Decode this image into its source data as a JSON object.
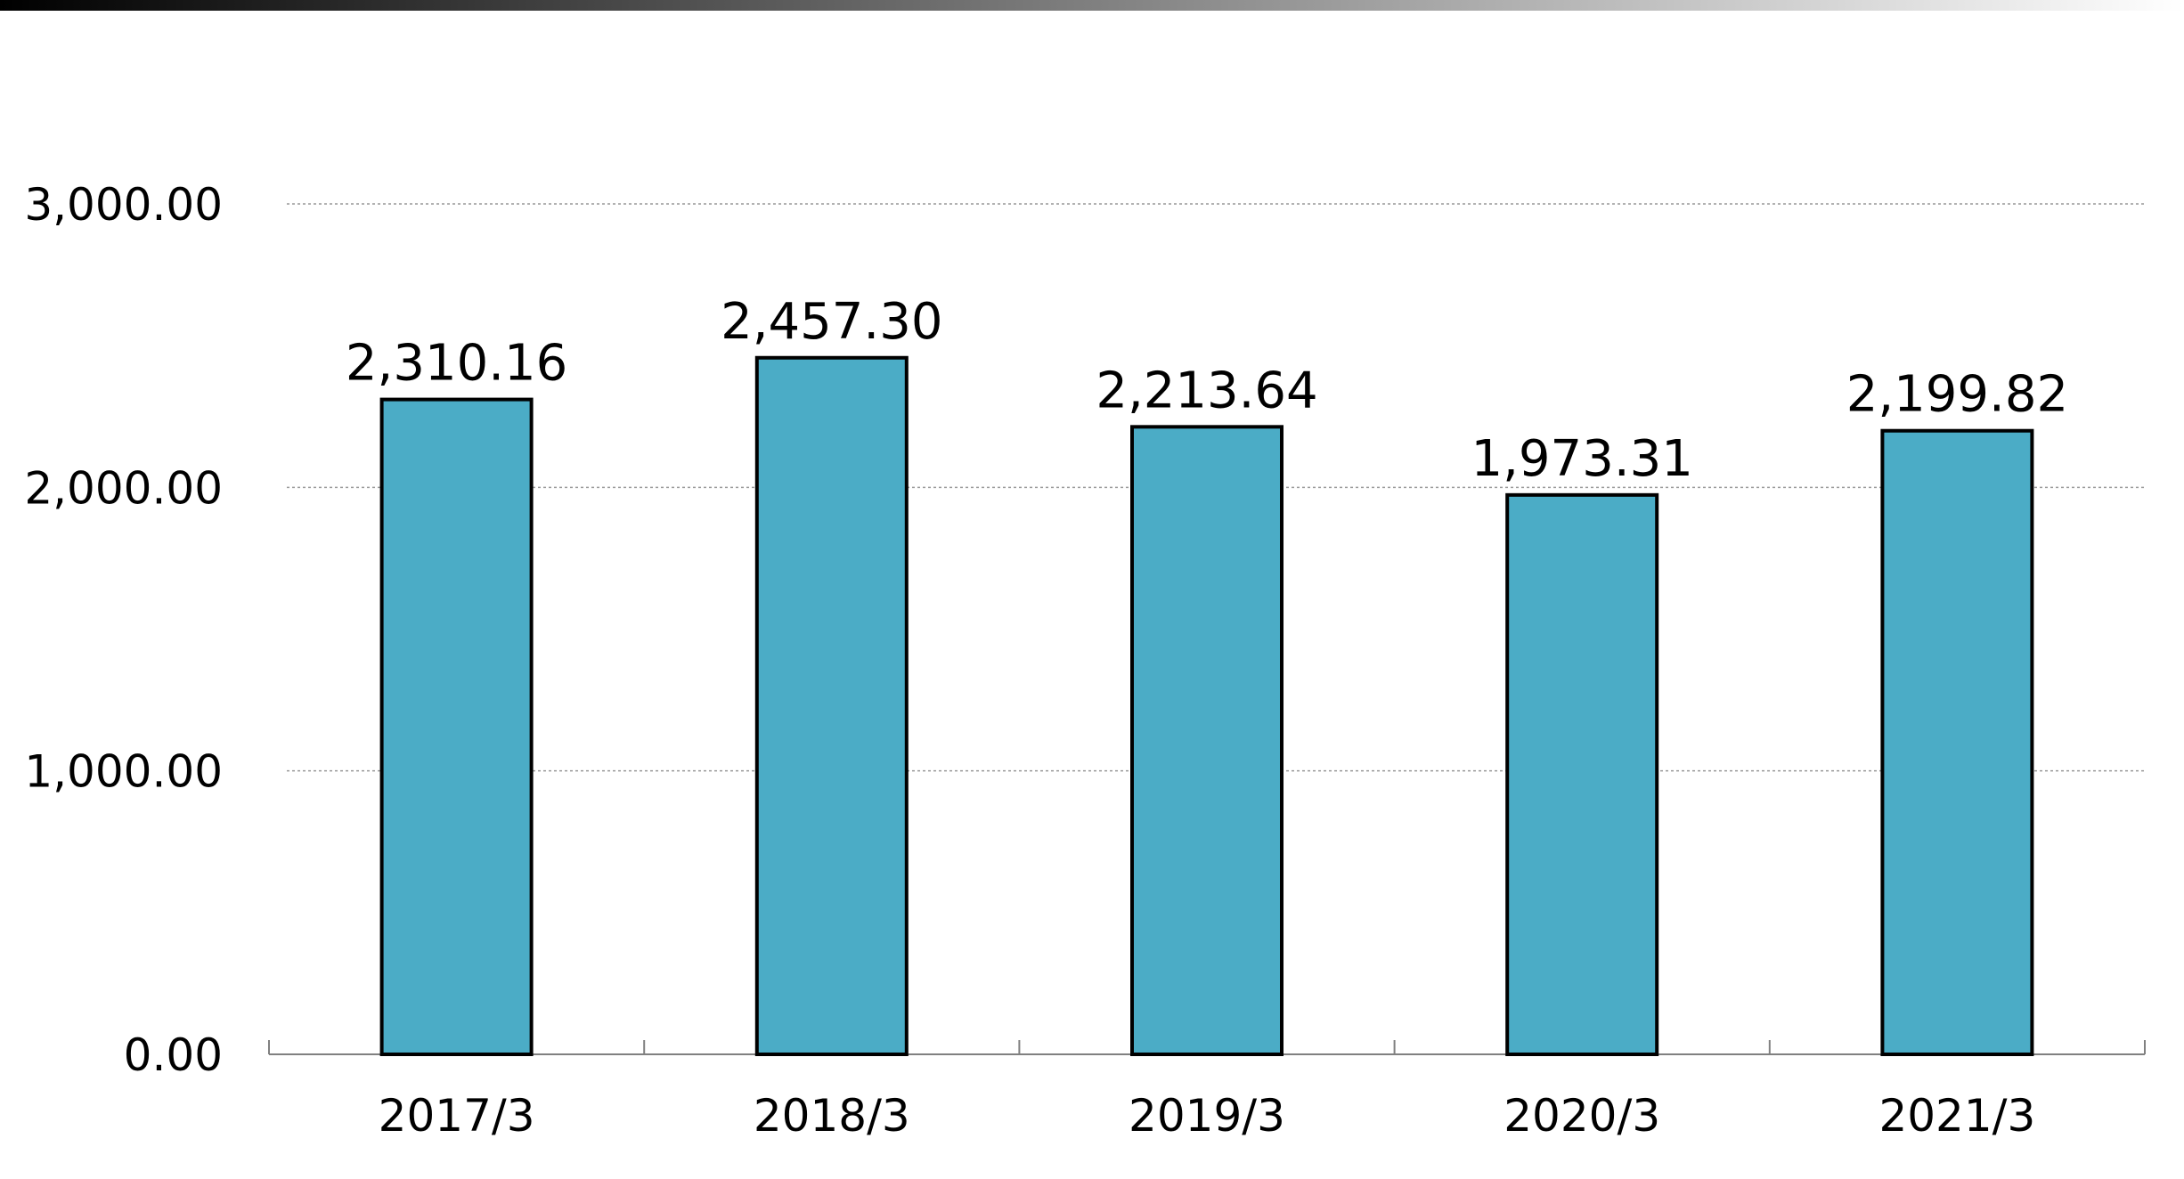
{
  "chart_data": {
    "type": "bar",
    "title": "",
    "xlabel": "",
    "ylabel": "",
    "categories": [
      "2017/3",
      "2018/3",
      "2019/3",
      "2020/3",
      "2021/3"
    ],
    "values": [
      2310.16,
      2457.3,
      2213.64,
      1973.31,
      2199.82
    ],
    "data_labels": [
      "2,310.16",
      "2,457.30",
      "2,213.64",
      "1,973.31",
      "2,199.82"
    ],
    "ylim": [
      0,
      3000
    ],
    "yticks": [
      0,
      1000,
      2000,
      3000
    ],
    "ytick_labels": [
      "0.00",
      "1,000.00",
      "2,000.00",
      "3,000.00"
    ],
    "grid": true,
    "legend": "none",
    "colors": {
      "bar_fill": "#4BACC6",
      "bar_stroke": "#000000",
      "grid": "#999999",
      "axis": "#808080",
      "header_bar_start": "#000000",
      "header_bar_end": "#ffffff"
    }
  }
}
